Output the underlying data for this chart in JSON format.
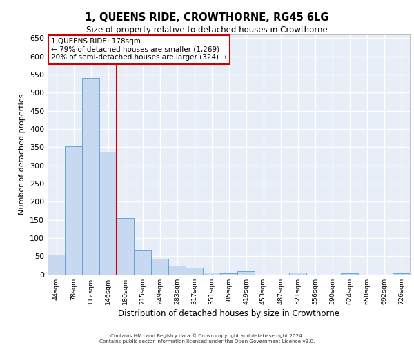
{
  "title": "1, QUEENS RIDE, CROWTHORNE, RG45 6LG",
  "subtitle": "Size of property relative to detached houses in Crowthorne",
  "xlabel": "Distribution of detached houses by size in Crowthorne",
  "ylabel": "Number of detached properties",
  "bar_color": "#c6d9f0",
  "bar_edge_color": "#5b9bd5",
  "background_color": "#e8eef7",
  "grid_color": "#ffffff",
  "categories": [
    "44sqm",
    "78sqm",
    "112sqm",
    "146sqm",
    "180sqm",
    "215sqm",
    "249sqm",
    "283sqm",
    "317sqm",
    "351sqm",
    "385sqm",
    "419sqm",
    "453sqm",
    "487sqm",
    "521sqm",
    "556sqm",
    "590sqm",
    "624sqm",
    "658sqm",
    "692sqm",
    "726sqm"
  ],
  "values": [
    55,
    352,
    540,
    338,
    155,
    65,
    42,
    24,
    18,
    5,
    3,
    8,
    0,
    0,
    4,
    0,
    0,
    2,
    0,
    0,
    2
  ],
  "property_line_color": "#cc0000",
  "annotation_text": "1 QUEENS RIDE: 178sqm\n← 79% of detached houses are smaller (1,269)\n20% of semi-detached houses are larger (324) →",
  "annotation_box_color": "#cc0000",
  "ylim": [
    0,
    660
  ],
  "yticks": [
    0,
    50,
    100,
    150,
    200,
    250,
    300,
    350,
    400,
    450,
    500,
    550,
    600,
    650
  ],
  "footer_line1": "Contains HM Land Registry data © Crown copyright and database right 2024.",
  "footer_line2": "Contains public sector information licensed under the Open Government Licence v3.0."
}
